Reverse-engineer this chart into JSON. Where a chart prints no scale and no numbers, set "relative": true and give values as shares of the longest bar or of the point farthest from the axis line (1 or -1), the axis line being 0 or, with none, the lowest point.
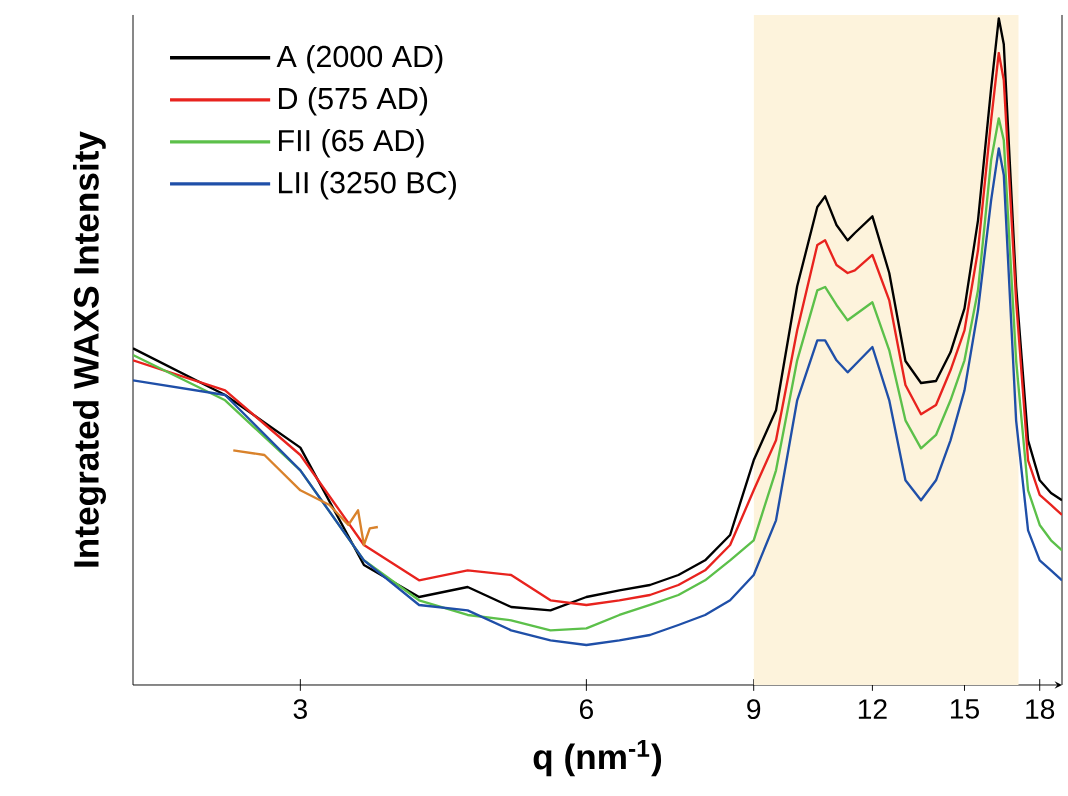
{
  "chart_data": {
    "type": "line",
    "relative": true,
    "log": "x",
    "xlabel": "q (nm$^{-1}$)",
    "ylabel": "Integrated WAXS Intensity",
    "x": [
      2,
      2.5,
      3,
      3.5,
      4,
      4.5,
      5,
      5.5,
      6,
      6.5,
      7,
      7.5,
      8,
      8.5,
      9,
      9.5,
      10,
      10.5,
      10.7,
      11,
      11.3,
      11.5,
      12,
      12.5,
      13,
      13.5,
      14,
      14.5,
      15,
      15.5,
      16,
      16.3,
      16.5,
      17,
      17.5,
      18,
      18.5,
      19
    ],
    "xlim": [
      2,
      19
    ],
    "xticks": [
      3,
      6,
      9,
      12,
      15,
      18
    ],
    "legend": "top left",
    "grid": false,
    "line_style": "solid",
    "bands": [
      {
        "axis": "x",
        "from": 9,
        "to": 17.1,
        "color": "#fdf3dc"
      }
    ],
    "series": [
      {
        "name": "A (2000 AD)",
        "color": "#000000",
        "values": [
          0.505,
          0.435,
          0.356,
          0.18,
          0.132,
          0.147,
          0.117,
          0.112,
          0.132,
          0.142,
          0.15,
          0.165,
          0.187,
          0.225,
          0.337,
          0.412,
          0.598,
          0.717,
          0.733,
          0.69,
          0.667,
          0.678,
          0.703,
          0.618,
          0.486,
          0.453,
          0.456,
          0.499,
          0.565,
          0.697,
          0.895,
          1.0,
          0.961,
          0.598,
          0.367,
          0.307,
          0.288,
          0.277
        ]
      },
      {
        "name": "D (575 AD)",
        "color": "#e8231e",
        "values": [
          0.487,
          0.442,
          0.345,
          0.21,
          0.157,
          0.172,
          0.165,
          0.127,
          0.12,
          0.127,
          0.135,
          0.15,
          0.172,
          0.21,
          0.292,
          0.367,
          0.532,
          0.66,
          0.667,
          0.63,
          0.618,
          0.622,
          0.645,
          0.577,
          0.45,
          0.406,
          0.42,
          0.472,
          0.532,
          0.652,
          0.847,
          0.948,
          0.907,
          0.577,
          0.337,
          0.285,
          0.27,
          0.255
        ]
      },
      {
        "name": "FII (65 AD)",
        "color": "#5cc04a",
        "values": [
          0.495,
          0.427,
          0.322,
          0.187,
          0.127,
          0.105,
          0.097,
          0.082,
          0.085,
          0.105,
          0.12,
          0.135,
          0.157,
          0.187,
          0.217,
          0.322,
          0.487,
          0.592,
          0.597,
          0.57,
          0.547,
          0.555,
          0.574,
          0.502,
          0.397,
          0.355,
          0.375,
          0.427,
          0.487,
          0.592,
          0.787,
          0.85,
          0.817,
          0.487,
          0.292,
          0.24,
          0.217,
          0.202
        ]
      },
      {
        "name": "LII (3250 BC)",
        "color": "#1f4fa8",
        "values": [
          0.457,
          0.435,
          0.322,
          0.187,
          0.12,
          0.112,
          0.082,
          0.067,
          0.06,
          0.067,
          0.075,
          0.09,
          0.105,
          0.127,
          0.165,
          0.247,
          0.427,
          0.517,
          0.517,
          0.487,
          0.469,
          0.48,
          0.507,
          0.427,
          0.307,
          0.277,
          0.307,
          0.367,
          0.442,
          0.562,
          0.727,
          0.805,
          0.765,
          0.397,
          0.232,
          0.187,
          0.172,
          0.157
        ]
      },
      {
        "color": "#d9822b",
        "x": [
          2.55,
          2.75,
          3.0,
          3.22,
          3.37,
          3.45,
          3.5,
          3.55,
          3.62
        ],
        "values": [
          0.352,
          0.345,
          0.292,
          0.27,
          0.24,
          0.262,
          0.21,
          0.235,
          0.237
        ]
      }
    ]
  }
}
